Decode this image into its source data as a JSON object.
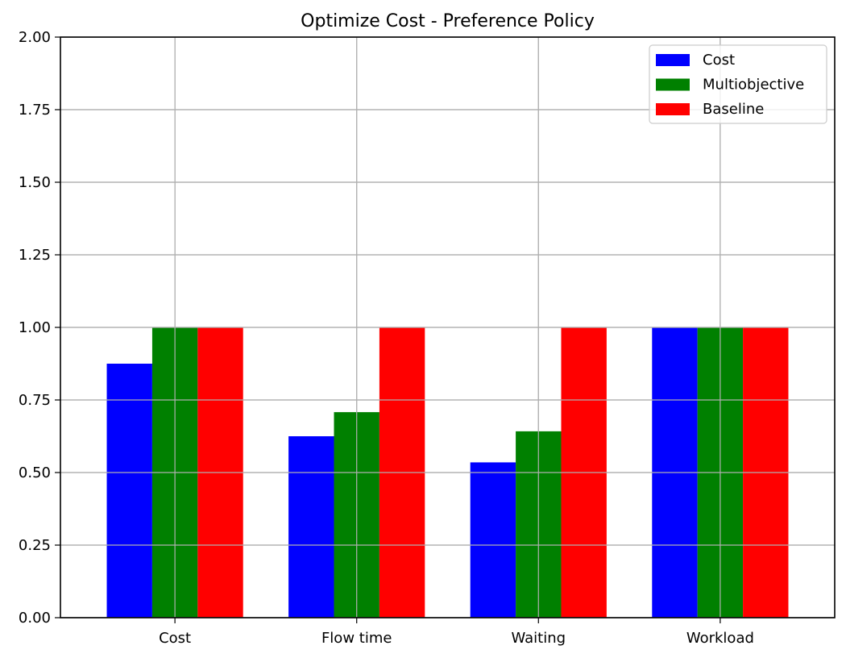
{
  "chart_data": {
    "type": "bar",
    "title": "Optimize Cost - Preference Policy",
    "xlabel": "",
    "ylabel": "",
    "categories": [
      "Cost",
      "Flow time",
      "Waiting",
      "Workload"
    ],
    "series": [
      {
        "name": "Cost",
        "color": "#0000ff",
        "values": [
          0.875,
          0.625,
          0.535,
          1.0
        ]
      },
      {
        "name": "Multiobjective",
        "color": "#008000",
        "values": [
          1.0,
          0.708,
          0.642,
          1.0
        ]
      },
      {
        "name": "Baseline",
        "color": "#ff0000",
        "values": [
          1.0,
          1.0,
          1.0,
          1.0
        ]
      }
    ],
    "ylim": [
      0,
      2.0
    ],
    "yticks": [
      "0.00",
      "0.25",
      "0.50",
      "0.75",
      "1.00",
      "1.25",
      "1.50",
      "1.75",
      "2.00"
    ],
    "grid": true,
    "legend_position": "top-right"
  }
}
